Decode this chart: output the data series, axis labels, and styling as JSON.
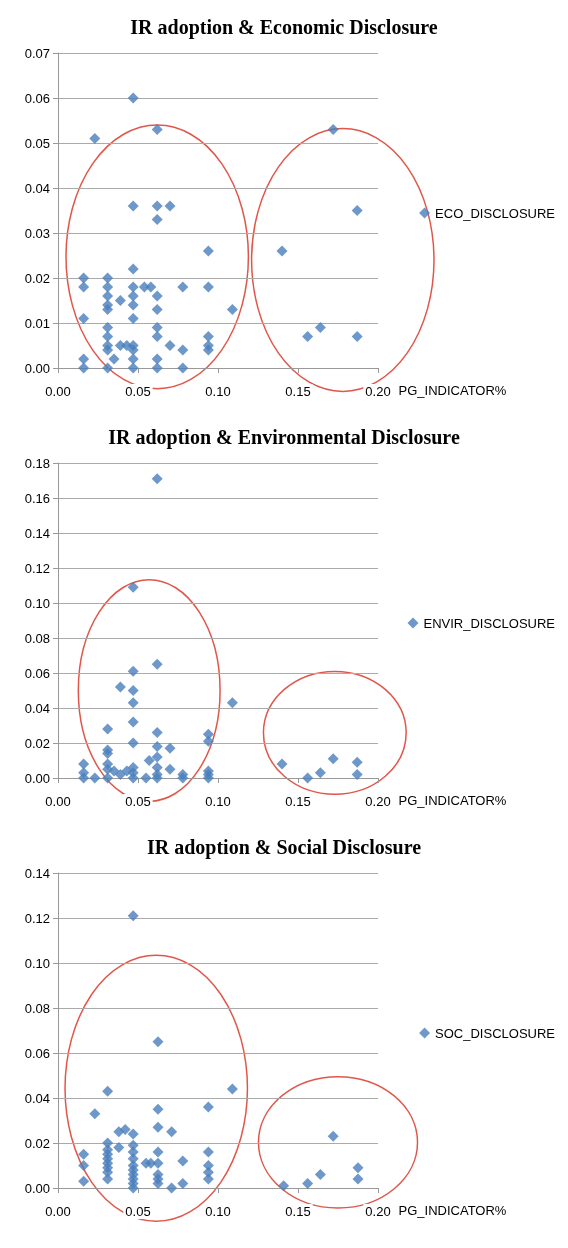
{
  "chart_data": [
    {
      "type": "scatter",
      "title": "IR adoption & Economic Disclosure",
      "xlabel": "PG_INDICATOR%",
      "marker": "diamond",
      "grid": "y",
      "legend": "right",
      "xlim": [
        0,
        0.2
      ],
      "xticks": [
        {
          "value": 0,
          "label": "0.00"
        },
        {
          "value": 0.05,
          "label": "0.05"
        },
        {
          "value": 0.1,
          "label": "0.10"
        },
        {
          "value": 0.15,
          "label": "0.15"
        },
        {
          "value": 0.2,
          "label": "0.20"
        }
      ],
      "ylim": [
        0,
        0.07
      ],
      "yticks": [
        {
          "value": 0,
          "label": "0.00"
        },
        {
          "value": 0.01,
          "label": "0.01"
        },
        {
          "value": 0.02,
          "label": "0.02"
        },
        {
          "value": 0.03,
          "label": "0.03"
        },
        {
          "value": 0.04,
          "label": "0.04"
        },
        {
          "value": 0.05,
          "label": "0.05"
        },
        {
          "value": 0.06,
          "label": "0.06"
        },
        {
          "value": 0.07,
          "label": "0.07"
        }
      ],
      "series": [
        {
          "name": "ECO_DISCLOSURE",
          "color": "#4a7ebb",
          "x": [
            0.016,
            0.016,
            0.016,
            0.016,
            0.016,
            0.023,
            0.031,
            0.031,
            0.031,
            0.031,
            0.031,
            0.031,
            0.031,
            0.031,
            0.031,
            0.031,
            0.035,
            0.039,
            0.039,
            0.043,
            0.047,
            0.047,
            0.047,
            0.047,
            0.047,
            0.047,
            0.047,
            0.047,
            0.047,
            0.047,
            0.047,
            0.054,
            0.058,
            0.062,
            0.062,
            0.062,
            0.062,
            0.062,
            0.062,
            0.062,
            0.062,
            0.062,
            0.07,
            0.07,
            0.078,
            0.078,
            0.078,
            0.094,
            0.094,
            0.094,
            0.094,
            0.094,
            0.109,
            0.14,
            0.156,
            0.164,
            0.172,
            0.187,
            0.187
          ],
          "values": [
            0.02,
            0.018,
            0.011,
            0.002,
            0,
            0.051,
            0.02,
            0.018,
            0.016,
            0.014,
            0.013,
            0.009,
            0.007,
            0.005,
            0.004,
            0,
            0.002,
            0.015,
            0.005,
            0.005,
            0.06,
            0.036,
            0.022,
            0.018,
            0.016,
            0.014,
            0.011,
            0.005,
            0.004,
            0.002,
            0,
            0.018,
            0.018,
            0.053,
            0.036,
            0.033,
            0.016,
            0.013,
            0.009,
            0.007,
            0.002,
            0,
            0.036,
            0.005,
            0.018,
            0.004,
            0,
            0.026,
            0.018,
            0.007,
            0.005,
            0.004,
            0.013,
            0.026,
            0.007,
            0.009,
            0.053,
            0.035,
            0.007
          ]
        }
      ]
    },
    {
      "type": "scatter",
      "title": "IR adoption & Environmental Disclosure",
      "xlabel": "PG_INDICATOR%",
      "marker": "diamond",
      "grid": "y",
      "legend": "right",
      "xlim": [
        0,
        0.2
      ],
      "xticks": [
        {
          "value": 0,
          "label": "0.00"
        },
        {
          "value": 0.05,
          "label": "0.05"
        },
        {
          "value": 0.1,
          "label": "0.10"
        },
        {
          "value": 0.15,
          "label": "0.15"
        },
        {
          "value": 0.2,
          "label": "0.20"
        }
      ],
      "ylim": [
        0,
        0.18
      ],
      "yticks": [
        {
          "value": 0,
          "label": "0.00"
        },
        {
          "value": 0.02,
          "label": "0.02"
        },
        {
          "value": 0.04,
          "label": "0.04"
        },
        {
          "value": 0.06,
          "label": "0.06"
        },
        {
          "value": 0.08,
          "label": "0.08"
        },
        {
          "value": 0.1,
          "label": "0.10"
        },
        {
          "value": 0.12,
          "label": "0.12"
        },
        {
          "value": 0.14,
          "label": "0.14"
        },
        {
          "value": 0.16,
          "label": "0.16"
        },
        {
          "value": 0.18,
          "label": "0.18"
        }
      ],
      "series": [
        {
          "name": "ENVIR_DISCLOSURE",
          "color": "#4a7ebb",
          "x": [
            0.016,
            0.016,
            0.016,
            0.023,
            0.031,
            0.031,
            0.031,
            0.031,
            0.031,
            0.031,
            0.035,
            0.039,
            0.039,
            0.043,
            0.047,
            0.047,
            0.047,
            0.047,
            0.047,
            0.047,
            0.047,
            0.047,
            0.047,
            0.055,
            0.057,
            0.062,
            0.062,
            0.062,
            0.062,
            0.062,
            0.062,
            0.062,
            0.062,
            0.07,
            0.07,
            0.078,
            0.078,
            0.094,
            0.094,
            0.094,
            0.094,
            0.094,
            0.109,
            0.14,
            0.156,
            0.164,
            0.172,
            0.187,
            0.187
          ],
          "values": [
            0.008,
            0.003,
            0,
            0,
            0.028,
            0.016,
            0.014,
            0.008,
            0.005,
            0,
            0.004,
            0.052,
            0.002,
            0.004,
            0.109,
            0.061,
            0.05,
            0.043,
            0.032,
            0.02,
            0.006,
            0.003,
            0,
            0,
            0.01,
            0.171,
            0.065,
            0.026,
            0.018,
            0.012,
            0.006,
            0.002,
            0,
            0.017,
            0.005,
            0.002,
            0,
            0.025,
            0.021,
            0.004,
            0.002,
            0,
            0.043,
            0.008,
            0,
            0.003,
            0.011,
            0.009,
            0.002
          ]
        }
      ]
    },
    {
      "type": "scatter",
      "title": "IR adoption & Social Disclosure",
      "xlabel": "PG_INDICATOR%",
      "marker": "diamond",
      "grid": "y",
      "legend": "right",
      "xlim": [
        0,
        0.2
      ],
      "xticks": [
        {
          "value": 0,
          "label": "0.00"
        },
        {
          "value": 0.05,
          "label": "0.05"
        },
        {
          "value": 0.1,
          "label": "0.10"
        },
        {
          "value": 0.15,
          "label": "0.15"
        },
        {
          "value": 0.2,
          "label": "0.20"
        }
      ],
      "ylim": [
        0,
        0.14
      ],
      "yticks": [
        {
          "value": 0,
          "label": "0.00"
        },
        {
          "value": 0.02,
          "label": "0.02"
        },
        {
          "value": 0.04,
          "label": "0.04"
        },
        {
          "value": 0.06,
          "label": "0.06"
        },
        {
          "value": 0.08,
          "label": "0.08"
        },
        {
          "value": 0.1,
          "label": "0.10"
        },
        {
          "value": 0.12,
          "label": "0.12"
        },
        {
          "value": 0.14,
          "label": "0.14"
        }
      ],
      "series": [
        {
          "name": "SOC_DISCLOSURE",
          "color": "#4a7ebb",
          "x": [
            0.016,
            0.016,
            0.016,
            0.023,
            0.031,
            0.031,
            0.031,
            0.031,
            0.031,
            0.031,
            0.031,
            0.031,
            0.031,
            0.038,
            0.038,
            0.042,
            0.047,
            0.047,
            0.047,
            0.047,
            0.047,
            0.047,
            0.047,
            0.047,
            0.047,
            0.047,
            0.047,
            0.055,
            0.058,
            0.0625,
            0.0625,
            0.0625,
            0.0625,
            0.0625,
            0.0625,
            0.0625,
            0.0625,
            0.071,
            0.071,
            0.078,
            0.078,
            0.094,
            0.094,
            0.094,
            0.094,
            0.094,
            0.109,
            0.141,
            0.156,
            0.164,
            0.172,
            0.1875,
            0.1875
          ],
          "values": [
            0.015,
            0.01,
            0.003,
            0.033,
            0.043,
            0.02,
            0.017,
            0.015,
            0.013,
            0.011,
            0.009,
            0.007,
            0.004,
            0.018,
            0.025,
            0.026,
            0.121,
            0.024,
            0.019,
            0.016,
            0.013,
            0.01,
            0.008,
            0.006,
            0.004,
            0.002,
            0,
            0.011,
            0.011,
            0.065,
            0.035,
            0.027,
            0.016,
            0.011,
            0.006,
            0.004,
            0.002,
            0.025,
            0,
            0.012,
            0.002,
            0.036,
            0.016,
            0.01,
            0.007,
            0.004,
            0.044,
            0.001,
            0.002,
            0.006,
            0.023,
            0.009,
            0.004
          ]
        }
      ]
    }
  ]
}
